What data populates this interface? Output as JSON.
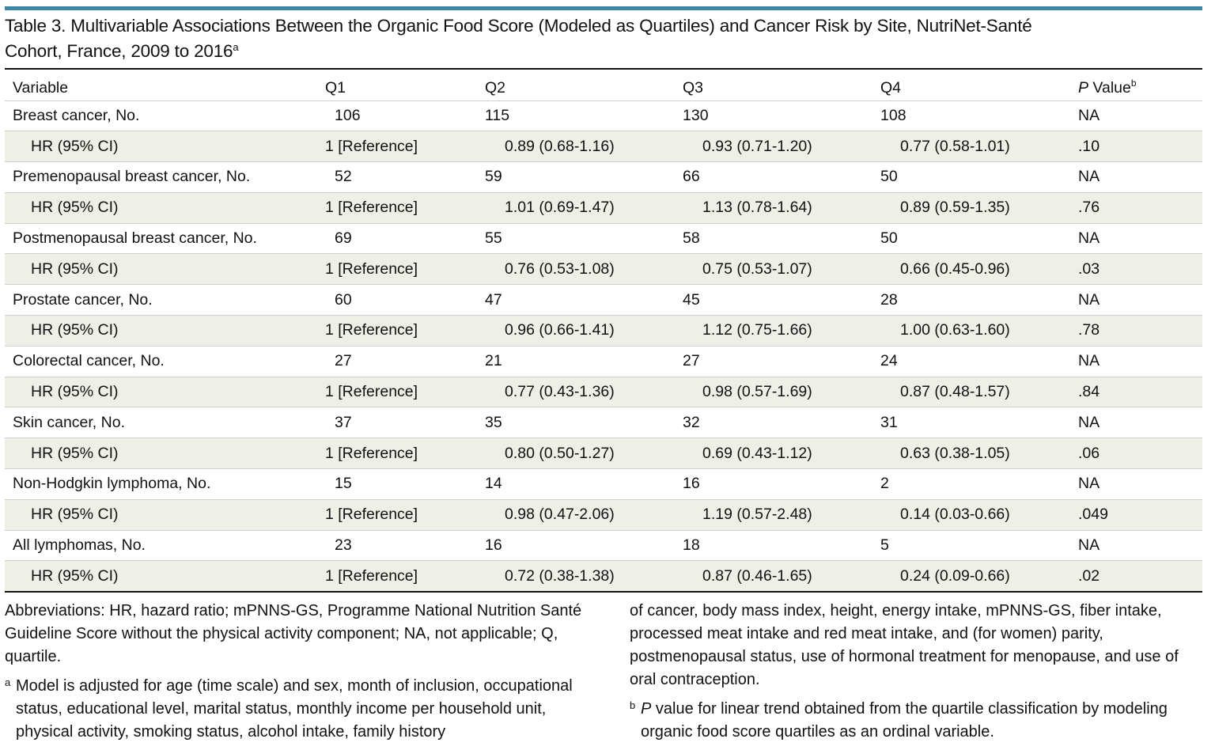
{
  "title": {
    "text": "Table 3. Multivariable Associations Between the Organic Food Score (Modeled as Quartiles) and Cancer Risk by Site, NutriNet-Santé Cohort, France, 2009 to 2016",
    "superscript": "a"
  },
  "table": {
    "headers": {
      "variable": "Variable",
      "q1": "Q1",
      "q2": "Q2",
      "q3": "Q3",
      "q4": "Q4",
      "p_italic": "P",
      "p_rest": " Value",
      "p_sup": "b"
    },
    "rows": [
      {
        "label": "Breast cancer, No.",
        "q1": "106",
        "q2": "115",
        "q3": "130",
        "q4": "108",
        "p": "NA"
      },
      {
        "label": "HR (95% CI)",
        "q1": "1 [Reference]",
        "q2": "0.89 (0.68-1.16)",
        "q3": "0.93 (0.71-1.20)",
        "q4": "0.77 (0.58-1.01)",
        "p": ".10"
      },
      {
        "label": "Premenopausal breast cancer, No.",
        "q1": "52",
        "q2": "59",
        "q3": "66",
        "q4": "50",
        "p": "NA"
      },
      {
        "label": "HR (95% CI)",
        "q1": "1 [Reference]",
        "q2": "1.01 (0.69-1.47)",
        "q3": "1.13 (0.78-1.64)",
        "q4": "0.89 (0.59-1.35)",
        "p": ".76"
      },
      {
        "label": "Postmenopausal breast cancer, No.",
        "q1": "69",
        "q2": "55",
        "q3": "58",
        "q4": "50",
        "p": "NA"
      },
      {
        "label": "HR (95% CI)",
        "q1": "1 [Reference]",
        "q2": "0.76 (0.53-1.08)",
        "q3": "0.75 (0.53-1.07)",
        "q4": "0.66 (0.45-0.96)",
        "p": ".03"
      },
      {
        "label": "Prostate cancer, No.",
        "q1": "60",
        "q2": "47",
        "q3": "45",
        "q4": "28",
        "p": "NA"
      },
      {
        "label": "HR (95% CI)",
        "q1": "1 [Reference]",
        "q2": "0.96 (0.66-1.41)",
        "q3": "1.12 (0.75-1.66)",
        "q4": "1.00 (0.63-1.60)",
        "p": ".78"
      },
      {
        "label": "Colorectal cancer, No.",
        "q1": "27",
        "q2": "21",
        "q3": "27",
        "q4": "24",
        "p": "NA"
      },
      {
        "label": "HR (95% CI)",
        "q1": "1 [Reference]",
        "q2": "0.77 (0.43-1.36)",
        "q3": "0.98 (0.57-1.69)",
        "q4": "0.87 (0.48-1.57)",
        "p": ".84"
      },
      {
        "label": "Skin cancer, No.",
        "q1": "37",
        "q2": "35",
        "q3": "32",
        "q4": "31",
        "p": "NA"
      },
      {
        "label": "HR (95% CI)",
        "q1": "1 [Reference]",
        "q2": "0.80 (0.50-1.27)",
        "q3": "0.69 (0.43-1.12)",
        "q4": "0.63 (0.38-1.05)",
        "p": ".06"
      },
      {
        "label": "Non-Hodgkin lymphoma, No.",
        "q1": "15",
        "q2": "14",
        "q3": "16",
        "q4": "2",
        "p": "NA"
      },
      {
        "label": "HR (95% CI)",
        "q1": "1 [Reference]",
        "q2": "0.98 (0.47-2.06)",
        "q3": "1.19 (0.57-2.48)",
        "q4": "0.14 (0.03-0.66)",
        "p": ".049"
      },
      {
        "label": "All lymphomas, No.",
        "q1": "23",
        "q2": "16",
        "q3": "18",
        "q4": "5",
        "p": "NA"
      },
      {
        "label": "HR (95% CI)",
        "q1": "1 [Reference]",
        "q2": "0.72 (0.38-1.38)",
        "q3": "0.87 (0.46-1.65)",
        "q4": "0.24 (0.09-0.66)",
        "p": ".02"
      }
    ]
  },
  "notes": {
    "abbreviations": "Abbreviations: HR, hazard ratio; mPNNS-GS, Programme National Nutrition Santé Guideline Score without the physical activity component; NA, not applicable; Q, quartile.",
    "footnote_a_mark": "a",
    "footnote_a_left": "Model is adjusted for age (time scale) and sex, month of inclusion, occupational status, educational level, marital status, monthly income per household unit, physical activity, smoking status, alcohol intake, family history",
    "footnote_a_right": "of cancer, body mass index, height, energy intake, mPNNS-GS, fiber intake, processed meat intake and red meat intake, and (for women) parity, postmenopausal status, use of hormonal treatment for menopause, and use of oral contraception.",
    "footnote_b_mark": "b",
    "footnote_b_italic": "P",
    "footnote_b_rest": " value for linear trend obtained from the quartile classification by modeling organic food score quartiles as an ordinal variable."
  }
}
